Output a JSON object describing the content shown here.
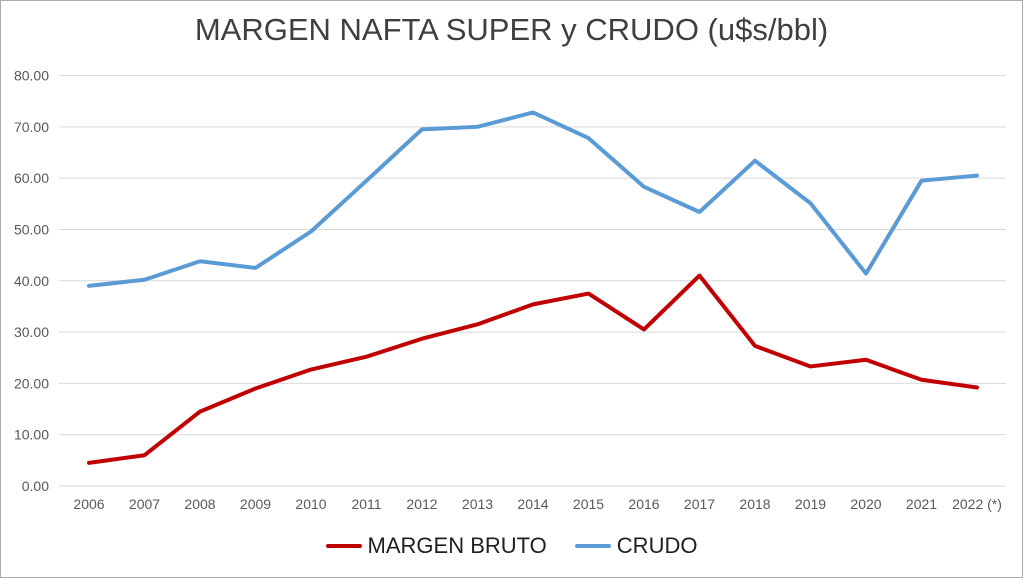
{
  "chart_data": {
    "type": "line",
    "title": "MARGEN NAFTA SUPER y CRUDO (u$s/bbl)",
    "xlabel": "",
    "ylabel": "",
    "categories": [
      "2006",
      "2007",
      "2008",
      "2009",
      "2010",
      "2011",
      "2012",
      "2013",
      "2014",
      "2015",
      "2016",
      "2017",
      "2018",
      "2019",
      "2020",
      "2021",
      "2022 (*)"
    ],
    "series": [
      {
        "name": "MARGEN BRUTO",
        "color": "#C00000",
        "values": [
          4.5,
          6.0,
          14.5,
          19.0,
          22.7,
          25.2,
          28.7,
          31.5,
          35.4,
          37.5,
          30.5,
          41.0,
          27.3,
          23.3,
          24.6,
          20.7,
          19.2
        ]
      },
      {
        "name": "CRUDO",
        "color": "#5B9BD5",
        "values": [
          39.0,
          40.2,
          43.8,
          42.5,
          49.6,
          59.5,
          69.5,
          70.0,
          72.8,
          67.8,
          58.3,
          53.4,
          63.4,
          55.1,
          41.4,
          59.5,
          60.5
        ]
      }
    ],
    "ylim": [
      0,
      80
    ],
    "ytick_step": 10,
    "ytick_labels": [
      "0.00",
      "10.00",
      "20.00",
      "30.00",
      "40.00",
      "50.00",
      "60.00",
      "70.00",
      "80.00"
    ],
    "grid": "horizontal-on",
    "legend_position": "bottom"
  },
  "colors": {
    "gridline": "#D9D9D9",
    "tick_text": "#595959",
    "title_text": "#3F3F3F",
    "legend_text": "#1F1F1F",
    "frame_border": "#ABABAB",
    "background": "#FFFFFF"
  }
}
